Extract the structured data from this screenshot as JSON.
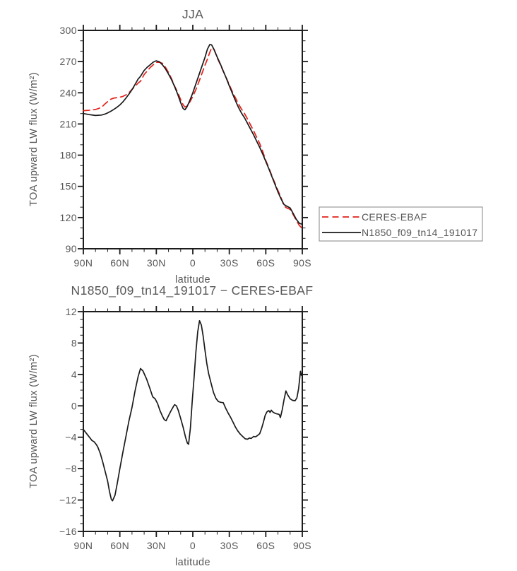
{
  "figure": {
    "background": "#ffffff",
    "text_color": "#575757",
    "axis_color": "#1c1c1c"
  },
  "chart_data": [
    {
      "type": "line",
      "title": "JJA",
      "xlabel": "latitude",
      "ylabel": "TOA upward LW flux (W/m²)",
      "xlim": [
        90,
        -90
      ],
      "ylim": [
        90,
        300
      ],
      "grid": false,
      "x_major_ticks": [
        90,
        60,
        30,
        0,
        -30,
        -60,
        -90
      ],
      "x_tick_labels": [
        "90N",
        "60N",
        "30N",
        "0",
        "30S",
        "60S",
        "90S"
      ],
      "x_minor_step": 10,
      "y_major_ticks": [
        90,
        120,
        150,
        180,
        210,
        240,
        270,
        300
      ],
      "y_tick_labels": [
        "90",
        "120",
        "150",
        "180",
        "210",
        "240",
        "270",
        "300"
      ],
      "y_minor_step": 10,
      "legend": {
        "position": "outside-right-bottom",
        "entries": [
          {
            "label": "CERES-EBAF",
            "color": "#e3211a",
            "line_style": "dashed"
          },
          {
            "label": "N1850_f09_tn14_191017",
            "color": "#1a1a1a",
            "line_style": "solid"
          }
        ]
      },
      "series": [
        {
          "name": "CERES-EBAF",
          "color": "#e3211a",
          "line_style": "dashed",
          "x": [
            90,
            85,
            80,
            75,
            72.5,
            70,
            67.5,
            65,
            62.5,
            60,
            57.5,
            55,
            52.5,
            50,
            47.5,
            45,
            43,
            40,
            37.5,
            35,
            32.5,
            30,
            27.5,
            25,
            22.5,
            20,
            17.5,
            15,
            12.5,
            10,
            8,
            6.5,
            5,
            2.5,
            0,
            -2.5,
            -5,
            -7.5,
            -10,
            -12,
            -14,
            -15.5,
            -17.5,
            -20,
            -22.5,
            -25,
            -27.5,
            -30,
            -32.5,
            -35,
            -37.5,
            -40,
            -42.5,
            -45,
            -47.5,
            -50,
            -52.5,
            -55,
            -57.5,
            -60,
            -62.5,
            -65,
            -67.5,
            -70,
            -72.5,
            -75,
            -77.5,
            -80,
            -82.5,
            -85,
            -87.5,
            -90
          ],
          "values": [
            222.8,
            223.2,
            223.9,
            226,
            229,
            231.5,
            233.8,
            234.9,
            235.3,
            235.8,
            236.5,
            238,
            240,
            243.3,
            246.2,
            249.3,
            251.1,
            257.5,
            261,
            264.3,
            267,
            269.3,
            269.4,
            268.3,
            264.5,
            259.5,
            253.5,
            246.5,
            240.3,
            233.5,
            228.5,
            226.3,
            227,
            231,
            236.5,
            243,
            250.5,
            258.5,
            266.5,
            272.5,
            279,
            283.2,
            281.7,
            274,
            267.3,
            260.6,
            254.3,
            247.7,
            241,
            235.2,
            229.3,
            224.3,
            220,
            214.7,
            209,
            203.4,
            197.3,
            191.2,
            183.5,
            174.9,
            167.8,
            160.3,
            153,
            145.9,
            139.2,
            131,
            129,
            127.9,
            122.9,
            117.5,
            112.5,
            109.5
          ]
        },
        {
          "name": "N1850_f09_tn14_191017",
          "color": "#1a1a1a",
          "line_style": "solid",
          "x": [
            90,
            85,
            80,
            75,
            72.5,
            70,
            67.5,
            65,
            62.5,
            60,
            57.5,
            55,
            52.5,
            50,
            47.5,
            45,
            43,
            40,
            37.5,
            35,
            32.5,
            30,
            27.5,
            25,
            22.5,
            20,
            17.5,
            15,
            12.5,
            10,
            8,
            6.5,
            5,
            2.5,
            0,
            -2.5,
            -5,
            -7.5,
            -10,
            -12,
            -14,
            -15.5,
            -17.5,
            -20,
            -22.5,
            -25,
            -27.5,
            -30,
            -32.5,
            -35,
            -37.5,
            -40,
            -42.5,
            -45,
            -47.5,
            -50,
            -52.5,
            -55,
            -57.5,
            -60,
            -62.5,
            -65,
            -67.5,
            -70,
            -72.5,
            -75,
            -77.5,
            -80,
            -82.5,
            -85,
            -87.5,
            -90
          ],
          "values": [
            220,
            219,
            218.2,
            218.6,
            219.4,
            220.6,
            222.2,
            224,
            226,
            228.3,
            231.2,
            234.8,
            238.8,
            243,
            248,
            253.2,
            255.8,
            261.5,
            264.5,
            267,
            269.5,
            270.8,
            269.8,
            267,
            263,
            258,
            252.5,
            246,
            238.8,
            230.5,
            225,
            223.7,
            226,
            232.5,
            240,
            248.5,
            257,
            265.5,
            274,
            282,
            286.5,
            286,
            281.5,
            274.5,
            268,
            261,
            254,
            246.5,
            239.5,
            232.5,
            226,
            220.5,
            216,
            210.5,
            205,
            199.5,
            193.5,
            187.5,
            181,
            174,
            167,
            159.5,
            152,
            144.5,
            138,
            132.5,
            130.8,
            129.2,
            124,
            118.5,
            114.5,
            113.5
          ]
        }
      ]
    },
    {
      "type": "line",
      "title": "N1850_f09_tn14_191017 − CERES-EBAF",
      "xlabel": "latitude",
      "ylabel": "TOA upward LW flux (W/m²)",
      "xlim": [
        90,
        -90
      ],
      "ylim": [
        -16,
        12
      ],
      "grid": false,
      "x_major_ticks": [
        90,
        60,
        30,
        0,
        -30,
        -60,
        -90
      ],
      "x_tick_labels": [
        "90N",
        "60N",
        "30N",
        "0",
        "30S",
        "60S",
        "90S"
      ],
      "x_minor_step": 10,
      "y_major_ticks": [
        -16,
        -12,
        -8,
        -4,
        0,
        4,
        8,
        12
      ],
      "y_tick_labels": [
        "−16",
        "−12",
        "−8",
        "−4",
        "0",
        "4",
        "8",
        "12"
      ],
      "y_minor_step": 1,
      "series": [
        {
          "name": "N1850_f09_tn14_191017 minus CERES-EBAF",
          "color": "#1a1a1a",
          "line_style": "solid",
          "x": [
            90,
            87.5,
            85,
            83,
            81,
            79,
            78,
            76,
            74,
            72,
            70,
            68.5,
            67,
            66,
            64,
            62,
            60,
            57.5,
            55,
            52.5,
            50,
            47.5,
            45,
            43,
            41,
            38,
            35,
            33,
            31,
            29,
            27,
            25,
            23.5,
            22,
            20,
            18,
            16,
            15,
            13.5,
            12,
            10,
            8,
            6,
            4.5,
            3.5,
            2,
            0.5,
            -1,
            -2.5,
            -4,
            -5.5,
            -7,
            -8.5,
            -10,
            -11.5,
            -13,
            -15,
            -17,
            -19,
            -21,
            -23,
            -25,
            -27,
            -29,
            -31,
            -33,
            -35,
            -37,
            -39,
            -41,
            -43,
            -45,
            -46.5,
            -48,
            -50,
            -51.5,
            -53,
            -55,
            -56.5,
            -58,
            -59.5,
            -61,
            -62.5,
            -63.5,
            -64.5,
            -65.5,
            -67,
            -68.5,
            -70,
            -71,
            -72,
            -73.5,
            -75,
            -76.5,
            -78,
            -80,
            -82,
            -84,
            -85.5,
            -87,
            -88.5,
            -89.2,
            -90
          ],
          "values": [
            -3.0,
            -3.5,
            -4.0,
            -4.4,
            -4.6,
            -5.0,
            -5.3,
            -6.1,
            -7.2,
            -8.4,
            -9.6,
            -10.9,
            -11.9,
            -12.1,
            -11.4,
            -9.8,
            -8.0,
            -5.9,
            -3.9,
            -1.9,
            -0.2,
            1.9,
            3.7,
            4.75,
            4.45,
            3.4,
            2.1,
            1.15,
            0.9,
            0.3,
            -0.6,
            -1.3,
            -1.75,
            -1.9,
            -1.25,
            -0.65,
            -0.1,
            0.15,
            0.0,
            -0.55,
            -1.6,
            -2.7,
            -4.0,
            -4.75,
            -4.9,
            -2.8,
            0.5,
            3.5,
            6.8,
            9.4,
            10.85,
            10.3,
            8.9,
            7.1,
            5.4,
            4.1,
            2.9,
            1.7,
            0.95,
            0.55,
            0.45,
            0.4,
            -0.3,
            -0.9,
            -1.45,
            -2.05,
            -2.7,
            -3.2,
            -3.6,
            -3.9,
            -4.2,
            -4.25,
            -4.1,
            -4.15,
            -3.9,
            -3.95,
            -3.8,
            -3.55,
            -2.9,
            -2.1,
            -1.2,
            -0.75,
            -0.6,
            -0.85,
            -0.55,
            -0.75,
            -0.9,
            -1.0,
            -1.05,
            -1.1,
            -1.5,
            -0.5,
            0.8,
            1.9,
            1.4,
            0.9,
            0.7,
            0.65,
            1.0,
            2.2,
            4.4,
            3.9,
            4.15
          ]
        }
      ]
    }
  ]
}
